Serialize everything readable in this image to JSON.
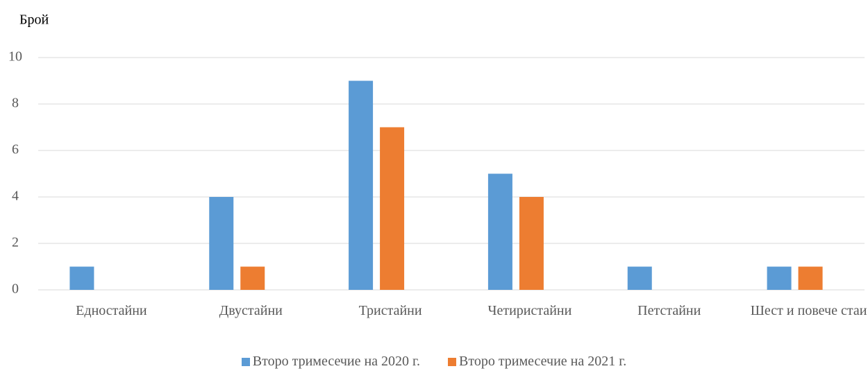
{
  "chart_data": {
    "type": "bar",
    "y_label": "Брой",
    "categories": [
      "Едностайни",
      "Двустайни",
      "Тристайни",
      "Четиристайни",
      "Петстайни",
      "Шест и повече стаи"
    ],
    "series": [
      {
        "name": "Второ тримесечие на 2020 г.",
        "color": "#5b9bd5",
        "values": [
          1,
          4,
          9,
          5,
          1,
          1
        ]
      },
      {
        "name": "Второ тримесечие на 2021 г.",
        "color": "#ed7d31",
        "values": [
          0,
          1,
          7,
          4,
          0,
          1
        ]
      }
    ],
    "ylim": [
      0,
      10
    ],
    "yticks": [
      0,
      2,
      4,
      6,
      8,
      10
    ],
    "grid": true,
    "legend": "bottom"
  }
}
